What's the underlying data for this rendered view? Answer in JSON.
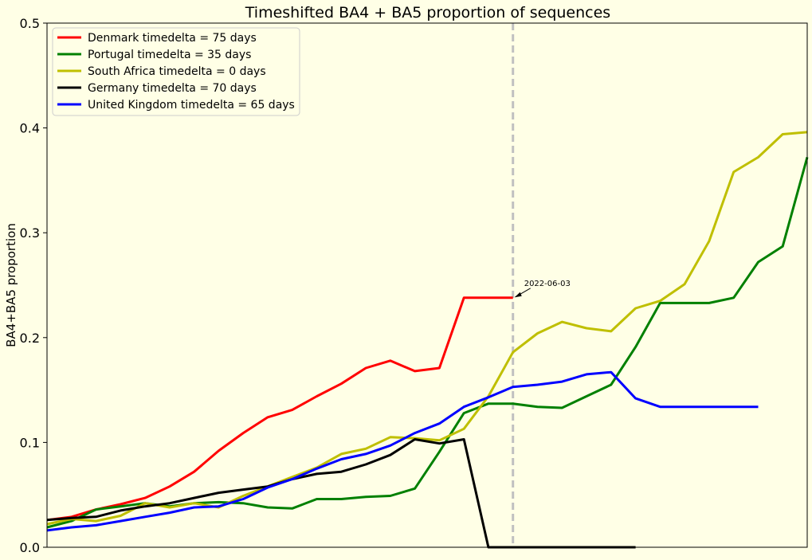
{
  "chart_data": {
    "type": "line",
    "title": "Timeshifted BA4 + BA5 proportion of sequences",
    "xlabel": "",
    "ylabel": "BA4+BA5 proportion",
    "ylim": [
      0,
      0.5
    ],
    "yticks": [
      "0.0",
      "0.1",
      "0.2",
      "0.3",
      "0.4",
      "0.5"
    ],
    "grid": false,
    "legend_position": "upper-left",
    "xlim": [
      0,
      31
    ],
    "vline_x": 19,
    "annotation": {
      "text": "2022-06-03",
      "x": 19,
      "y": 0.238
    },
    "series": [
      {
        "name": "Denmark timedelta = 75 days",
        "color": "#ff0000",
        "x": [
          0,
          1,
          2,
          3,
          4,
          5,
          6,
          7,
          8,
          9,
          10,
          11,
          12,
          13,
          14,
          15,
          16,
          17,
          18,
          19
        ],
        "values": [
          0.026,
          0.029,
          0.036,
          0.041,
          0.047,
          0.058,
          0.072,
          0.092,
          0.109,
          0.124,
          0.131,
          0.144,
          0.156,
          0.171,
          0.178,
          0.168,
          0.171,
          0.238,
          0.238,
          0.238
        ]
      },
      {
        "name": "Portugal timedelta = 35 days",
        "color": "#008000",
        "x": [
          0,
          1,
          2,
          3,
          4,
          5,
          6,
          7,
          8,
          9,
          10,
          11,
          12,
          13,
          14,
          15,
          16,
          17,
          18,
          19,
          20,
          21,
          22,
          23,
          24,
          25,
          26,
          27,
          28,
          29,
          30,
          31
        ],
        "values": [
          0.019,
          0.025,
          0.036,
          0.039,
          0.042,
          0.039,
          0.042,
          0.043,
          0.042,
          0.038,
          0.037,
          0.046,
          0.046,
          0.048,
          0.049,
          0.056,
          0.091,
          0.128,
          0.137,
          0.137,
          0.134,
          0.133,
          0.144,
          0.155,
          0.191,
          0.233,
          0.233,
          0.233,
          0.238,
          0.272,
          0.287,
          0.372
        ]
      },
      {
        "name": "South Africa timedelta = 0 days",
        "color": "#bfbf00",
        "x": [
          0,
          1,
          2,
          3,
          4,
          5,
          6,
          7,
          8,
          9,
          10,
          11,
          12,
          13,
          14,
          15,
          16,
          17,
          18,
          19,
          20,
          21,
          22,
          23,
          24,
          25,
          26,
          27,
          28,
          29,
          30,
          31
        ],
        "values": [
          0.022,
          0.027,
          0.025,
          0.03,
          0.042,
          0.038,
          0.042,
          0.038,
          0.049,
          0.058,
          0.067,
          0.076,
          0.089,
          0.094,
          0.105,
          0.104,
          0.102,
          0.113,
          0.144,
          0.186,
          0.204,
          0.215,
          0.209,
          0.206,
          0.228,
          0.235,
          0.251,
          0.292,
          0.358,
          0.372,
          0.394,
          0.396
        ]
      },
      {
        "name": "Germany timedelta = 70 days",
        "color": "#000000",
        "x": [
          0,
          1,
          2,
          3,
          4,
          5,
          6,
          7,
          8,
          9,
          10,
          11,
          12,
          13,
          14,
          15,
          16,
          17,
          18,
          19,
          20,
          21,
          22,
          23,
          24
        ],
        "values": [
          0.026,
          0.028,
          0.029,
          0.035,
          0.039,
          0.042,
          0.047,
          0.052,
          0.055,
          0.058,
          0.065,
          0.07,
          0.072,
          0.079,
          0.088,
          0.103,
          0.099,
          0.103,
          0.0,
          0.0,
          0.0,
          0.0,
          0.0,
          0.0,
          0.0
        ]
      },
      {
        "name": "United Kingdom timedelta = 65 days",
        "color": "#0000ff",
        "x": [
          0,
          1,
          2,
          3,
          4,
          5,
          6,
          7,
          8,
          9,
          10,
          11,
          12,
          13,
          14,
          15,
          16,
          17,
          18,
          19,
          20,
          21,
          22,
          23,
          24,
          25,
          26,
          27,
          28,
          29
        ],
        "values": [
          0.016,
          0.019,
          0.021,
          0.025,
          0.029,
          0.033,
          0.038,
          0.039,
          0.046,
          0.057,
          0.065,
          0.075,
          0.084,
          0.089,
          0.097,
          0.109,
          0.118,
          0.134,
          0.143,
          0.153,
          0.155,
          0.158,
          0.165,
          0.167,
          0.142,
          0.134,
          0.134,
          0.134,
          0.134,
          0.134
        ]
      }
    ]
  }
}
